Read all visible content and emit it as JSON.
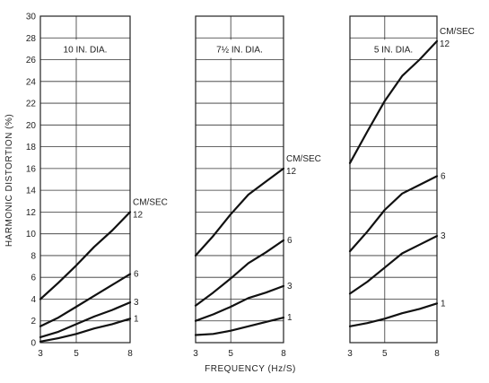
{
  "chart_data": {
    "type": "line",
    "ylabel": "HARMONIC DISTORTION (%)",
    "xlabel": "FREQUENCY (Hz/S)",
    "ylim": [
      0,
      30
    ],
    "yticks": [
      0,
      2,
      4,
      6,
      8,
      10,
      12,
      14,
      16,
      18,
      20,
      22,
      24,
      26,
      28,
      30
    ],
    "xticks": [
      3,
      5,
      8
    ],
    "grid": true,
    "unit_label": "CM/SEC",
    "panels": [
      {
        "title": "10 IN. DIA.",
        "series": [
          {
            "name": "12",
            "x": [
              3,
              4,
              5,
              6,
              7,
              8
            ],
            "y": [
              4.0,
              5.5,
              7.1,
              8.8,
              10.3,
              12.0
            ]
          },
          {
            "name": "6",
            "x": [
              3,
              4,
              5,
              6,
              7,
              8
            ],
            "y": [
              1.5,
              2.3,
              3.3,
              4.3,
              5.3,
              6.3
            ]
          },
          {
            "name": "3",
            "x": [
              3,
              4,
              5,
              6,
              7,
              8
            ],
            "y": [
              0.5,
              1.0,
              1.7,
              2.4,
              3.0,
              3.7
            ]
          },
          {
            "name": "1",
            "x": [
              3,
              4,
              5,
              6,
              7,
              8
            ],
            "y": [
              0.1,
              0.4,
              0.8,
              1.3,
              1.7,
              2.2
            ]
          }
        ]
      },
      {
        "title": "7½ IN. DIA.",
        "series": [
          {
            "name": "12",
            "x": [
              3,
              4,
              5,
              6,
              7,
              8
            ],
            "y": [
              8.0,
              9.8,
              11.8,
              13.6,
              14.8,
              16.0
            ]
          },
          {
            "name": "6",
            "x": [
              3,
              4,
              5,
              6,
              7,
              8
            ],
            "y": [
              3.4,
              4.6,
              5.9,
              7.3,
              8.3,
              9.4
            ]
          },
          {
            "name": "3",
            "x": [
              3,
              4,
              5,
              6,
              7,
              8
            ],
            "y": [
              2.0,
              2.6,
              3.3,
              4.1,
              4.6,
              5.2
            ]
          },
          {
            "name": "1",
            "x": [
              3,
              4,
              5,
              6,
              7,
              8
            ],
            "y": [
              0.7,
              0.8,
              1.1,
              1.5,
              1.9,
              2.3
            ]
          }
        ]
      },
      {
        "title": "5 IN. DIA.",
        "series": [
          {
            "name": "12",
            "x": [
              3,
              4,
              5,
              6,
              7,
              8
            ],
            "y": [
              16.5,
              19.4,
              22.2,
              24.5,
              26.0,
              27.7
            ]
          },
          {
            "name": "6",
            "x": [
              3,
              4,
              5,
              6,
              7,
              8
            ],
            "y": [
              8.4,
              10.2,
              12.2,
              13.7,
              14.5,
              15.3
            ]
          },
          {
            "name": "3",
            "x": [
              3,
              4,
              5,
              6,
              7,
              8
            ],
            "y": [
              4.5,
              5.6,
              6.9,
              8.2,
              9.0,
              9.8
            ]
          },
          {
            "name": "1",
            "x": [
              3,
              4,
              5,
              6,
              7,
              8
            ],
            "y": [
              1.5,
              1.8,
              2.2,
              2.7,
              3.1,
              3.6
            ]
          }
        ]
      }
    ]
  }
}
